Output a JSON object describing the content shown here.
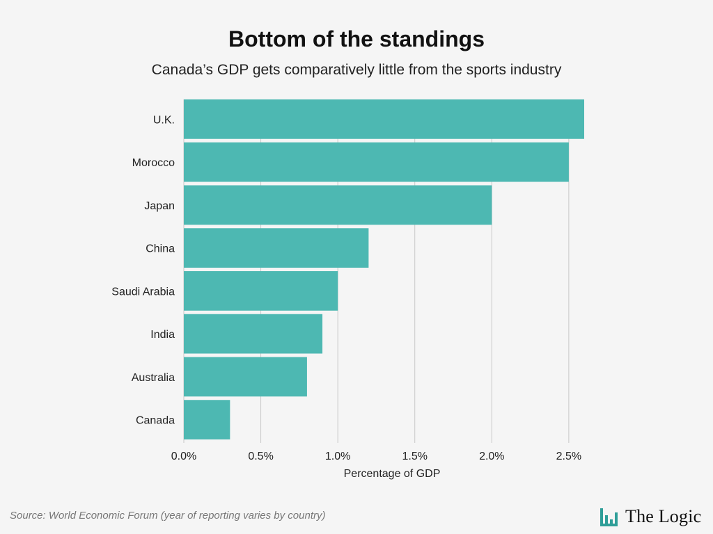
{
  "header": {
    "title": "Bottom of the standings",
    "subtitle": "Canada’s GDP gets comparatively little from the sports industry"
  },
  "footer": {
    "source": "Source: World Economic Forum (year of reporting varies by country)",
    "logo_text": "The Logic"
  },
  "colors": {
    "bar": "#4db8b2",
    "grid": "#c8c8c8",
    "axis_text": "#222222",
    "logo_accent": "#2f9e98"
  },
  "icons": {
    "logo": "bar-chart-icon"
  },
  "chart_data": {
    "type": "bar",
    "orientation": "horizontal",
    "categories": [
      "U.K.",
      "Morocco",
      "Japan",
      "China",
      "Saudi Arabia",
      "India",
      "Australia",
      "Canada"
    ],
    "values": [
      2.6,
      2.5,
      2.0,
      1.2,
      1.0,
      0.9,
      0.8,
      0.3
    ],
    "xlabel": "Percentage of GDP",
    "xlim": [
      0,
      2.6
    ],
    "ticks": [
      0,
      0.5,
      1.0,
      1.5,
      2.0,
      2.5
    ],
    "tick_labels": [
      "0.0%",
      "0.5%",
      "1.0%",
      "1.5%",
      "2.0%",
      "2.5%"
    ],
    "grid": "vertical"
  }
}
